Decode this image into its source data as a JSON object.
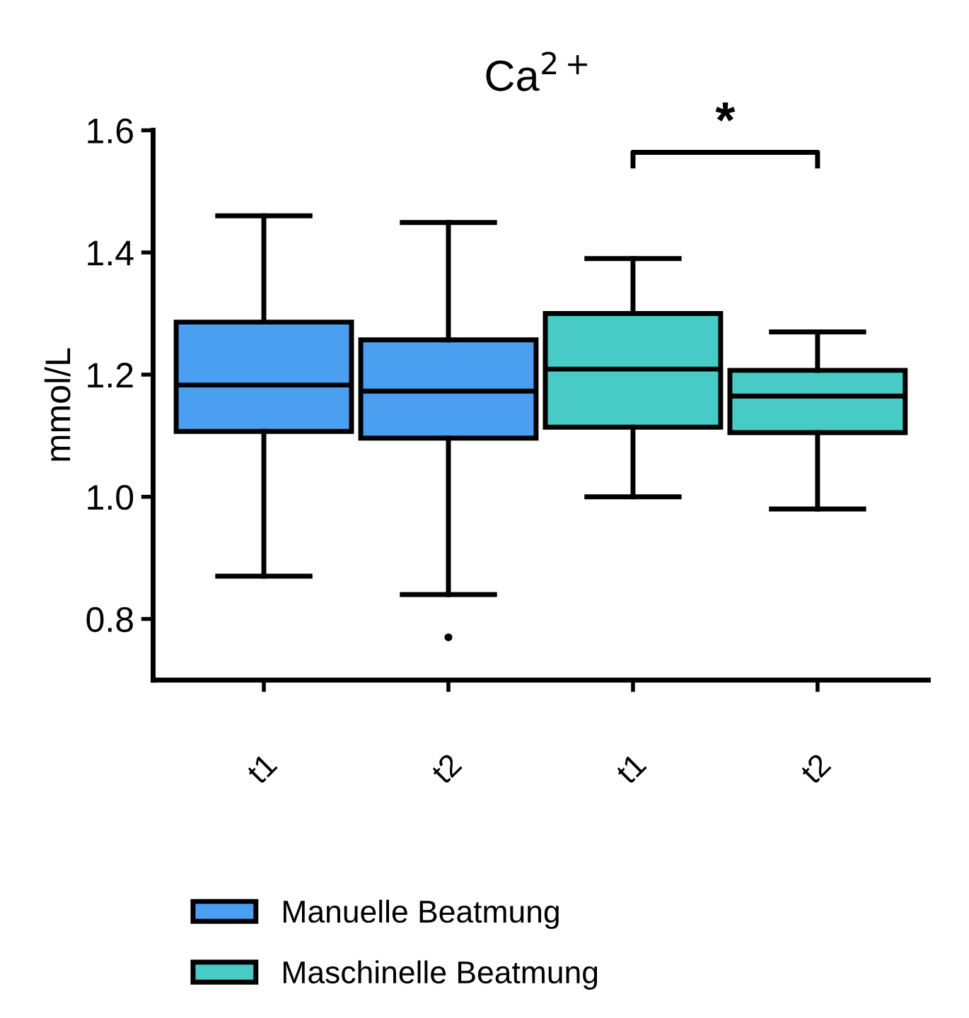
{
  "chart_data": {
    "type": "box",
    "title": "Ca$^{2+}$",
    "ylabel": "mmol/L",
    "categories": [
      "t1",
      "t2",
      "t1",
      "t2"
    ],
    "series": [
      {
        "name": "Manuelle Beatmung",
        "color": "#4a9ff0",
        "boxes": [
          {
            "low": 0.87,
            "q1": 1.107,
            "median": 1.183,
            "q3": 1.286,
            "high": 1.46
          },
          {
            "low": 0.84,
            "q1": 1.096,
            "median": 1.173,
            "q3": 1.257,
            "high": 1.449,
            "outliers": [
              0.77
            ]
          },
          null,
          null
        ]
      },
      {
        "name": "Maschinelle Beatmung",
        "color": "#48cbc6",
        "boxes": [
          null,
          null,
          {
            "low": 1.0,
            "q1": 1.114,
            "median": 1.209,
            "q3": 1.3,
            "high": 1.39
          },
          {
            "low": 0.98,
            "q1": 1.105,
            "median": 1.165,
            "q3": 1.207,
            "high": 1.27
          }
        ]
      }
    ],
    "ylim": [
      0.7,
      1.6
    ],
    "yticks": [
      0.8,
      {
        "value": 1.0,
        "label": "1.0"
      },
      1.2,
      1.4,
      1.6
    ],
    "grid": false,
    "legend": "bottom",
    "annotations": [
      "*"
    ]
  }
}
